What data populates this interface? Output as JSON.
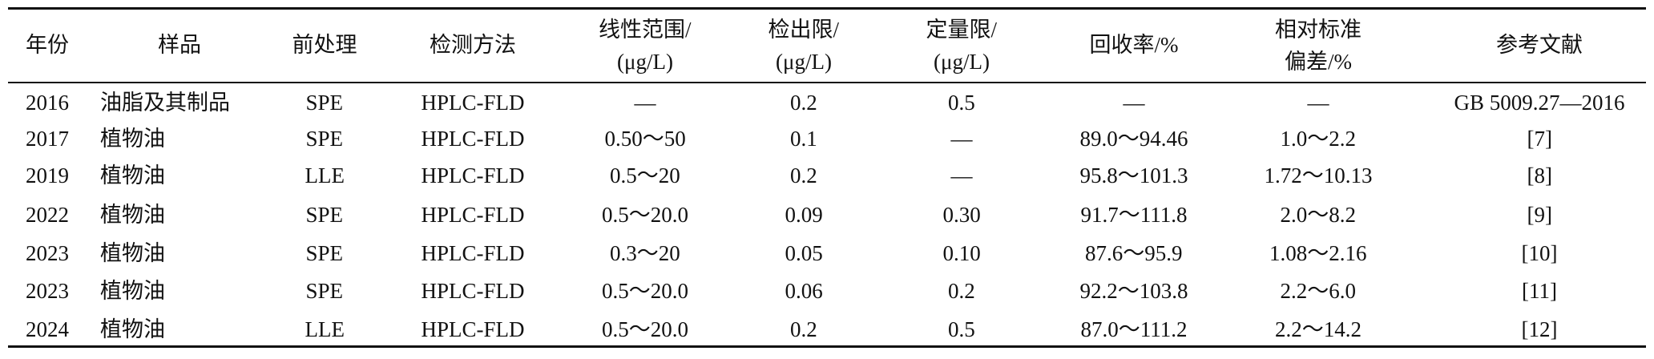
{
  "table": {
    "header": [
      [
        "年份"
      ],
      [
        "样品"
      ],
      [
        "前处理"
      ],
      [
        "检测方法"
      ],
      [
        "线性范围/",
        "(μg/L)"
      ],
      [
        "检出限/",
        "(μg/L)"
      ],
      [
        "定量限/",
        "(μg/L)"
      ],
      [
        "回收率/%"
      ],
      [
        "相对标准",
        "偏差/%"
      ],
      [
        "参考文献"
      ]
    ],
    "rows": [
      [
        "2016",
        "油脂及其制品",
        "SPE",
        "HPLC-FLD",
        "—",
        "0.2",
        "0.5",
        "—",
        "—",
        "GB 5009.27—2016"
      ],
      [
        "2017",
        "植物油",
        "SPE",
        "HPLC-FLD",
        "0.50～50",
        "0.1",
        "—",
        "89.0～94.46",
        "1.0～2.2",
        "[7]"
      ],
      [
        "2019",
        "植物油",
        "LLE",
        "HPLC-FLD",
        "0.5～20",
        "0.2",
        "—",
        "95.8～101.3",
        "1.72～10.13",
        "[8]"
      ],
      [
        "2022",
        "植物油",
        "SPE",
        "HPLC-FLD",
        "0.5～20.0",
        "0.09",
        "0.30",
        "91.7～111.8",
        "2.0～8.2",
        "[9]"
      ],
      [
        "2023",
        "植物油",
        "SPE",
        "HPLC-FLD",
        "0.3～20",
        "0.05",
        "0.10",
        "87.6～95.9",
        "1.08～2.16",
        "[10]"
      ],
      [
        "2023",
        "植物油",
        "SPE",
        "HPLC-FLD",
        "0.5～20.0",
        "0.06",
        "0.2",
        "92.2～103.8",
        "2.2～6.0",
        "[11]"
      ],
      [
        "2024",
        "植物油",
        "LLE",
        "HPLC-FLD",
        "0.5～20.0",
        "0.2",
        "0.5",
        "87.0～111.2",
        "2.2～14.2",
        "[12]"
      ]
    ]
  }
}
